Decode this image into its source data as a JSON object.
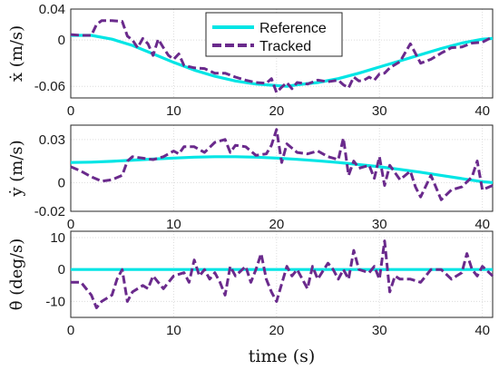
{
  "colors": {
    "reference": "#00e5e5",
    "tracked": "#6a2a8c"
  },
  "chart_data": [
    {
      "type": "line",
      "ylabel": "ẋ (m/s)",
      "xlim": [
        0,
        41
      ],
      "ylim": [
        -0.075,
        0.04
      ],
      "xticks": [
        "0",
        "10",
        "20",
        "30",
        "40"
      ],
      "yticks": [
        {
          "value": 0.04,
          "label": "0.04"
        },
        {
          "value": 0,
          "label": "0"
        },
        {
          "value": -0.06,
          "label": "-0.06"
        }
      ],
      "grid": true,
      "legend": {
        "placement": "top-center",
        "entries": [
          "Reference",
          "Tracked"
        ]
      },
      "series": [
        {
          "name": "Reference",
          "style": "solid",
          "x": [
            0,
            2,
            4,
            6,
            8,
            10,
            12,
            14,
            16,
            18,
            20,
            21,
            22,
            24,
            26,
            28,
            30,
            32,
            34,
            36,
            38,
            40,
            41
          ],
          "y": [
            0.006,
            0.006,
            0.001,
            -0.007,
            -0.018,
            -0.029,
            -0.039,
            -0.047,
            -0.053,
            -0.057,
            -0.059,
            -0.06,
            -0.058,
            -0.055,
            -0.05,
            -0.043,
            -0.035,
            -0.027,
            -0.019,
            -0.011,
            -0.004,
            0.001,
            0.002
          ]
        },
        {
          "name": "Tracked",
          "style": "dashed",
          "x": [
            0,
            1,
            2,
            2.5,
            3,
            4,
            5,
            5.5,
            6,
            6.5,
            7,
            7.5,
            8,
            8.5,
            9,
            9.5,
            10,
            10.5,
            11,
            12,
            13,
            14,
            15,
            16,
            17,
            18,
            19,
            19.5,
            20,
            20.5,
            21,
            21.5,
            22,
            23,
            24,
            25,
            26,
            26.5,
            27,
            27.5,
            28,
            28.5,
            29,
            29.5,
            30,
            30.5,
            31,
            32,
            33,
            34,
            35,
            36,
            37,
            38,
            39,
            40,
            41
          ],
          "y": [
            0.007,
            0.006,
            0.006,
            0.02,
            0.025,
            0.025,
            0.024,
            0.005,
            0.0,
            -0.01,
            0.002,
            -0.005,
            -0.02,
            0.001,
            -0.01,
            -0.02,
            -0.025,
            -0.018,
            -0.033,
            -0.036,
            -0.037,
            -0.043,
            -0.043,
            -0.048,
            -0.052,
            -0.055,
            -0.056,
            -0.05,
            -0.068,
            -0.061,
            -0.055,
            -0.063,
            -0.055,
            -0.057,
            -0.052,
            -0.054,
            -0.052,
            -0.058,
            -0.062,
            -0.048,
            -0.053,
            -0.052,
            -0.048,
            -0.052,
            -0.044,
            -0.043,
            -0.036,
            -0.028,
            -0.005,
            -0.03,
            -0.025,
            -0.017,
            -0.01,
            -0.009,
            -0.004,
            -0.003,
            0.004
          ]
        }
      ]
    },
    {
      "type": "line",
      "ylabel": "ẏ (m/s)",
      "xlim": [
        0,
        41
      ],
      "ylim": [
        -0.02,
        0.04
      ],
      "xticks": [
        "0",
        "10",
        "20",
        "30",
        "40"
      ],
      "yticks": [
        {
          "value": 0.03,
          "label": "0.03"
        },
        {
          "value": 0,
          "label": "0"
        },
        {
          "value": -0.02,
          "label": "-0.02"
        }
      ],
      "grid": true,
      "series": [
        {
          "name": "Reference",
          "style": "solid",
          "x": [
            0,
            2,
            4,
            6,
            8,
            10,
            12,
            14,
            16,
            18,
            20,
            22,
            24,
            26,
            28,
            30,
            32,
            34,
            36,
            38,
            40,
            41
          ],
          "y": [
            0.014,
            0.0142,
            0.0148,
            0.0156,
            0.0164,
            0.0171,
            0.0177,
            0.018,
            0.018,
            0.0177,
            0.0171,
            0.0162,
            0.0152,
            0.014,
            0.0125,
            0.011,
            0.0092,
            0.0072,
            0.005,
            0.0028,
            0.0006,
            0.0
          ]
        },
        {
          "name": "Tracked",
          "style": "dashed",
          "x": [
            0,
            1,
            2,
            3,
            4,
            5,
            5.5,
            6,
            7,
            8,
            9,
            10,
            10.5,
            11,
            12,
            13,
            14,
            15,
            15.5,
            16,
            17,
            18,
            19,
            19.5,
            20,
            20.5,
            21,
            22,
            23,
            24,
            25,
            26,
            26.5,
            27,
            27.5,
            28,
            29,
            29.5,
            30,
            30.5,
            31,
            32,
            33,
            33.5,
            34,
            35,
            36,
            37,
            38,
            39,
            39.5,
            40,
            41
          ],
          "y": [
            0.011,
            0.008,
            0.004,
            0.001,
            0.002,
            0.005,
            0.015,
            0.018,
            0.017,
            0.016,
            0.018,
            0.022,
            0.02,
            0.025,
            0.025,
            0.021,
            0.028,
            0.03,
            0.021,
            0.026,
            0.025,
            0.019,
            0.02,
            0.026,
            0.037,
            0.014,
            0.027,
            0.021,
            0.02,
            0.022,
            0.018,
            0.016,
            0.031,
            0.005,
            0.015,
            0.01,
            0.012,
            0.003,
            0.018,
            -0.002,
            0.012,
            0.002,
            0.008,
            -0.003,
            -0.01,
            0.005,
            -0.012,
            -0.005,
            -0.003,
            0.004,
            0.015,
            -0.005,
            -0.002
          ]
        }
      ]
    },
    {
      "type": "line",
      "ylabel": "θ̇ (deg/s)",
      "xlim": [
        0,
        41
      ],
      "ylim": [
        -15,
        12
      ],
      "xticks": [
        "0",
        "10",
        "20",
        "30",
        "40"
      ],
      "yticks": [
        {
          "value": 10,
          "label": "10"
        },
        {
          "value": 0,
          "label": "0"
        },
        {
          "value": -10,
          "label": "-10"
        }
      ],
      "grid": true,
      "xlabel": "time (s)",
      "series": [
        {
          "name": "Reference",
          "style": "solid",
          "x": [
            0,
            41
          ],
          "y": [
            0,
            0
          ]
        },
        {
          "name": "Tracked",
          "style": "dashed",
          "x": [
            0,
            1,
            2,
            2.5,
            3,
            4,
            4.5,
            5,
            5.5,
            6,
            7,
            7.5,
            8,
            8.5,
            9,
            10,
            11,
            11.5,
            12,
            12.5,
            13,
            13.5,
            14,
            14.5,
            15,
            15.5,
            16,
            17,
            17.5,
            18,
            18.5,
            19,
            19.5,
            20,
            21,
            21.5,
            22,
            23,
            23.5,
            24,
            25,
            25.5,
            26,
            26.5,
            27,
            27.5,
            28,
            29,
            29.5,
            30,
            30.5,
            31,
            31.5,
            32,
            33,
            34,
            35,
            36,
            37,
            38,
            38.5,
            39,
            39.5,
            40,
            41
          ],
          "y": [
            -4,
            -4,
            -8,
            -12,
            -10,
            -8,
            -3,
            0,
            -10,
            -7,
            -5,
            -6,
            -2,
            -4,
            -6,
            -2,
            -1,
            -4,
            3,
            -2,
            0,
            -3,
            -1,
            -4,
            -8,
            1,
            -2,
            1,
            -4,
            0,
            5,
            -3,
            -7,
            -10,
            1,
            -2,
            0,
            -6,
            1,
            -3,
            2,
            0,
            -3,
            0,
            -3,
            6,
            0,
            -1,
            1,
            -3,
            9,
            -7,
            -2,
            -3,
            -3,
            -4,
            0,
            0,
            -3,
            -1,
            5,
            0,
            -2,
            1,
            -2
          ]
        }
      ]
    }
  ]
}
